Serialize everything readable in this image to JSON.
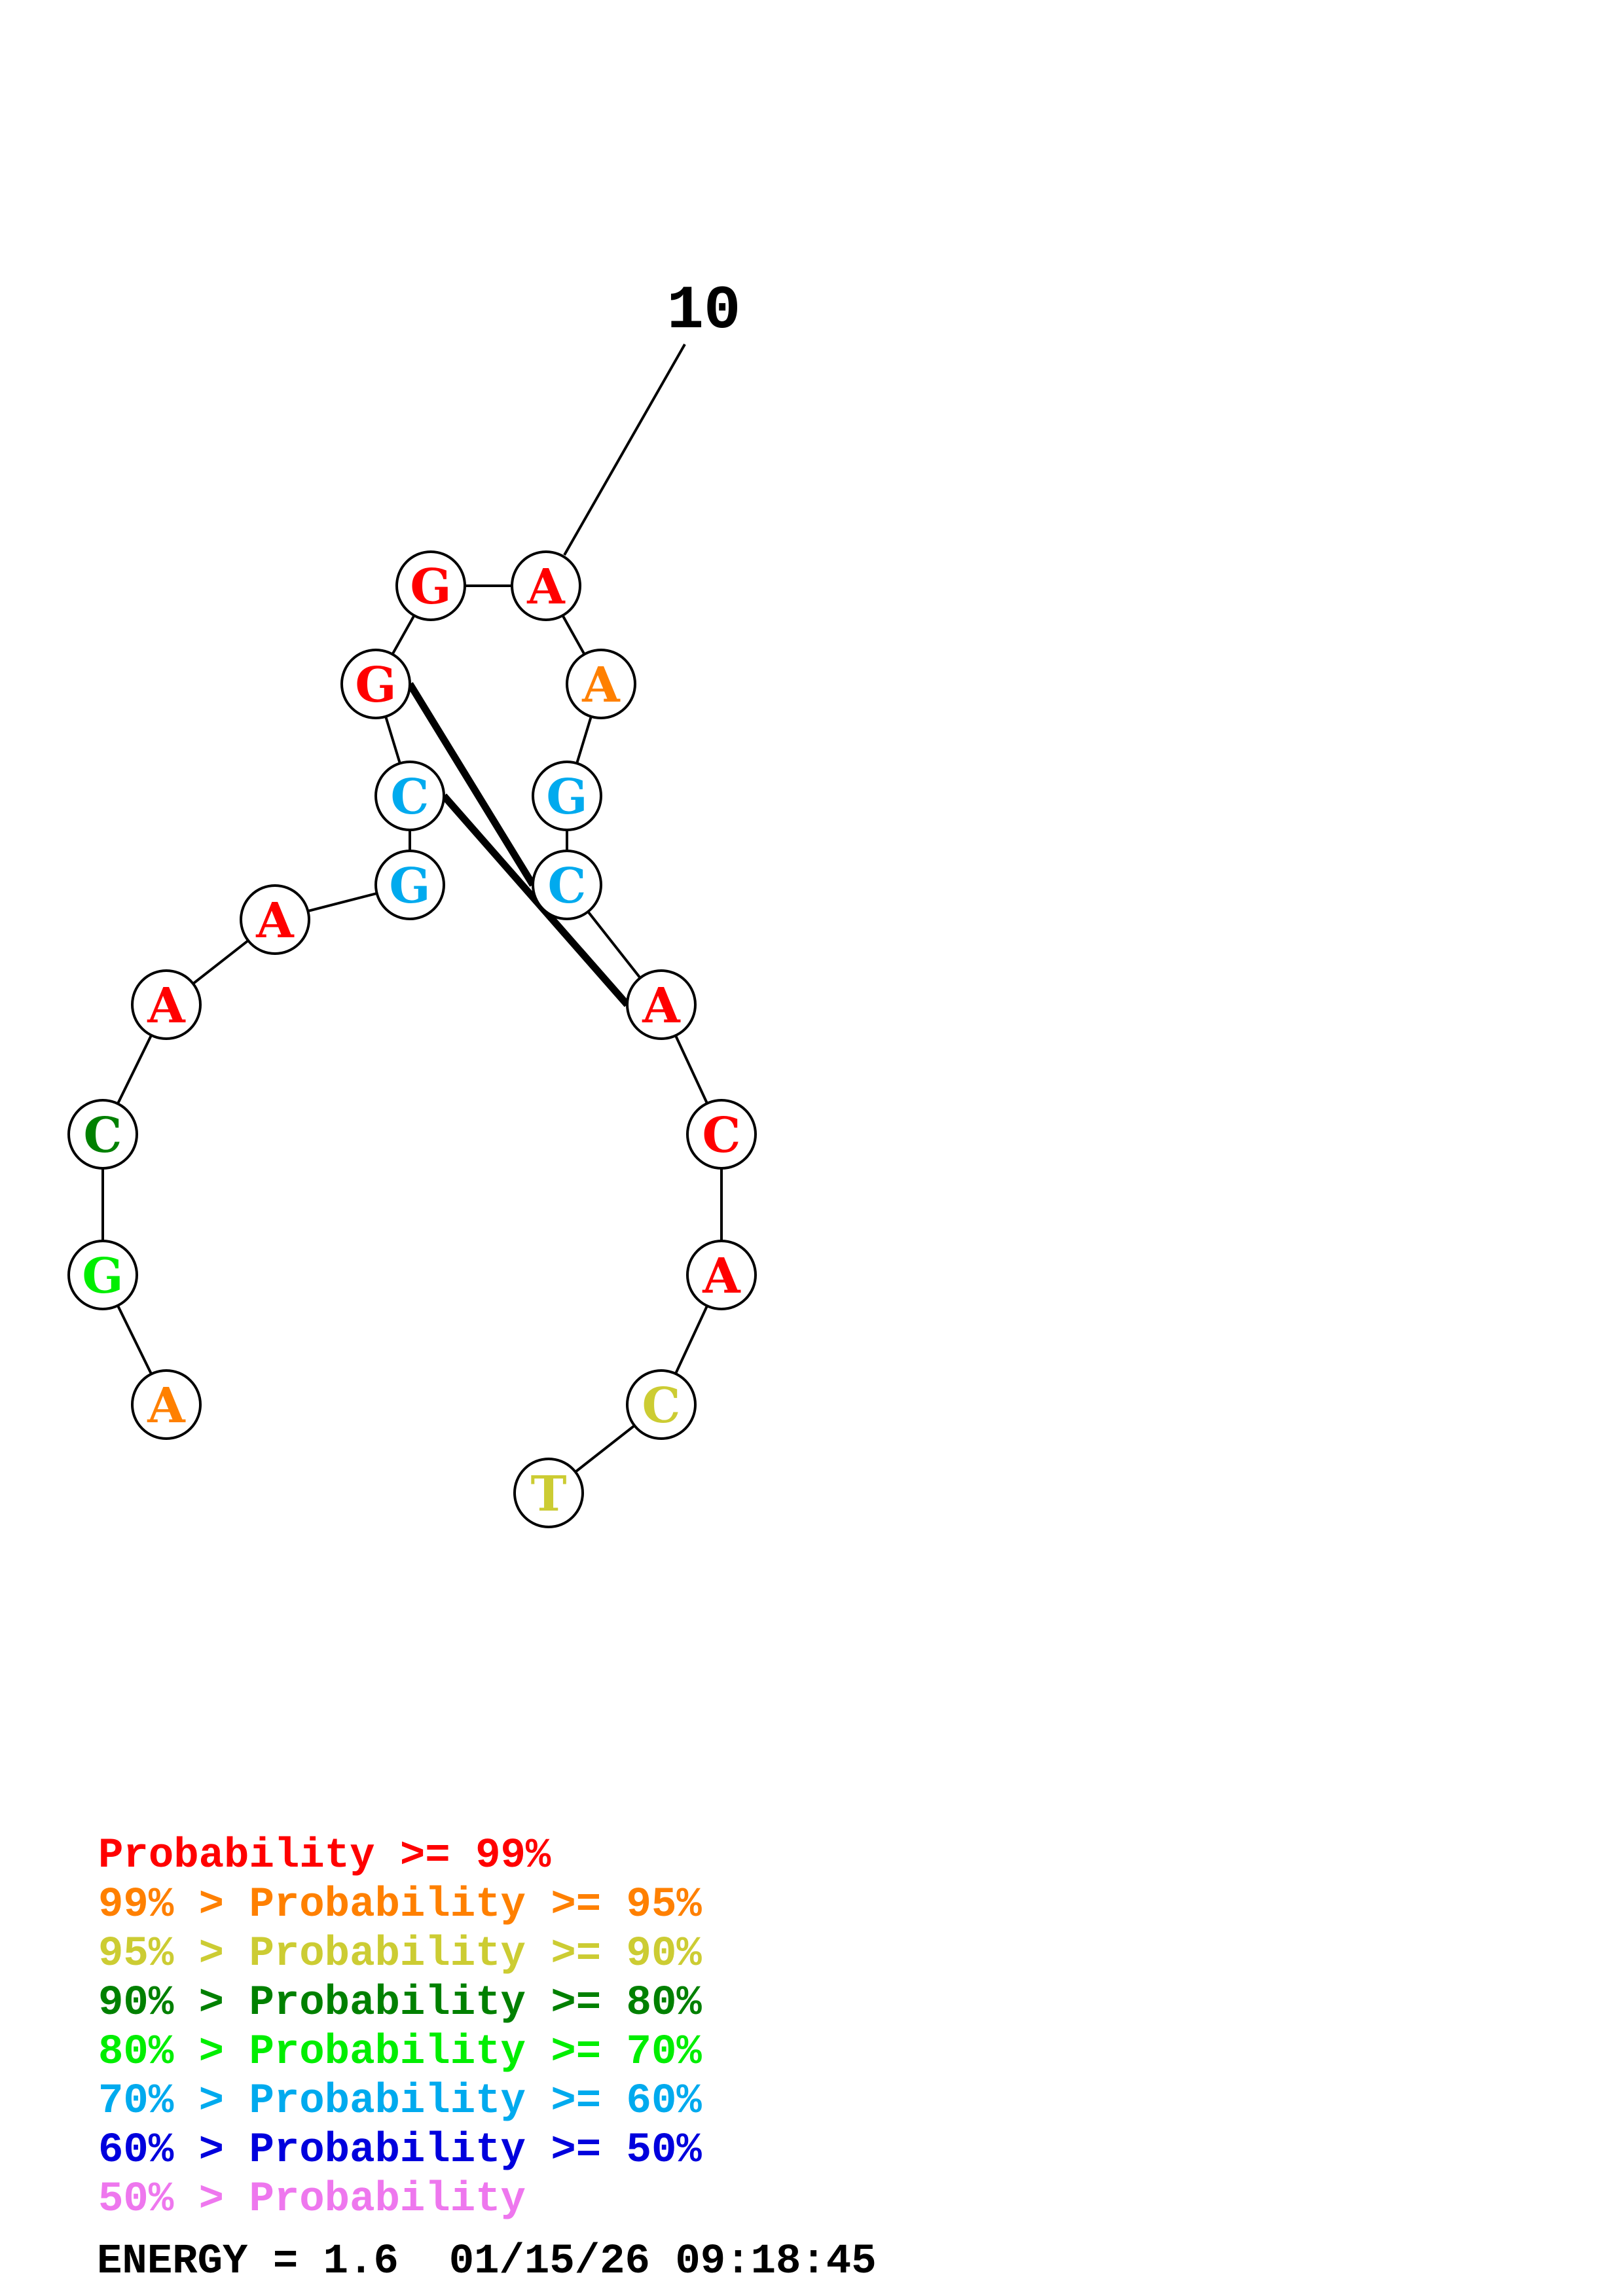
{
  "diagram": {
    "position_label": "10",
    "nucleotides": [
      {
        "letter": "A",
        "color": "#ff8000"
      },
      {
        "letter": "G",
        "color": "#00ee00"
      },
      {
        "letter": "C",
        "color": "#008000"
      },
      {
        "letter": "A",
        "color": "#ff0000"
      },
      {
        "letter": "A",
        "color": "#ff0000"
      },
      {
        "letter": "G",
        "color": "#00aaee"
      },
      {
        "letter": "C",
        "color": "#00aaee"
      },
      {
        "letter": "G",
        "color": "#ff0000"
      },
      {
        "letter": "G",
        "color": "#ff0000"
      },
      {
        "letter": "A",
        "color": "#ff0000"
      },
      {
        "letter": "A",
        "color": "#ff8000"
      },
      {
        "letter": "G",
        "color": "#00aaee"
      },
      {
        "letter": "C",
        "color": "#00aaee"
      },
      {
        "letter": "A",
        "color": "#ff0000"
      },
      {
        "letter": "C",
        "color": "#ff0000"
      },
      {
        "letter": "A",
        "color": "#ff0000"
      },
      {
        "letter": "C",
        "color": "#cccc33"
      },
      {
        "letter": "T",
        "color": "#cccc33"
      }
    ],
    "pairs": [
      [
        6,
        13
      ],
      [
        7,
        12
      ]
    ]
  },
  "legend": [
    {
      "prefix": "",
      "text": "Probability >= 99%",
      "color": "#ff0000"
    },
    {
      "prefix": "99% > ",
      "text": "Probability >= 95%",
      "color": "#ff8000"
    },
    {
      "prefix": "95% > ",
      "text": "Probability >= 90%",
      "color": "#cccc33"
    },
    {
      "prefix": "90% > ",
      "text": "Probability >= 80%",
      "color": "#008000"
    },
    {
      "prefix": "80% > ",
      "text": "Probability >= 70%",
      "color": "#00ee00"
    },
    {
      "prefix": "70% > ",
      "text": "Probability >= 60%",
      "color": "#00aaee"
    },
    {
      "prefix": "60% > ",
      "text": "Probability >= 50%",
      "color": "#0000dd"
    },
    {
      "prefix": "50% > ",
      "text": "Probability",
      "color": "#ee77ee"
    }
  ],
  "footer": {
    "energy": "ENERGY = 1.6",
    "timestamp": "01/15/26 09:18:45"
  }
}
